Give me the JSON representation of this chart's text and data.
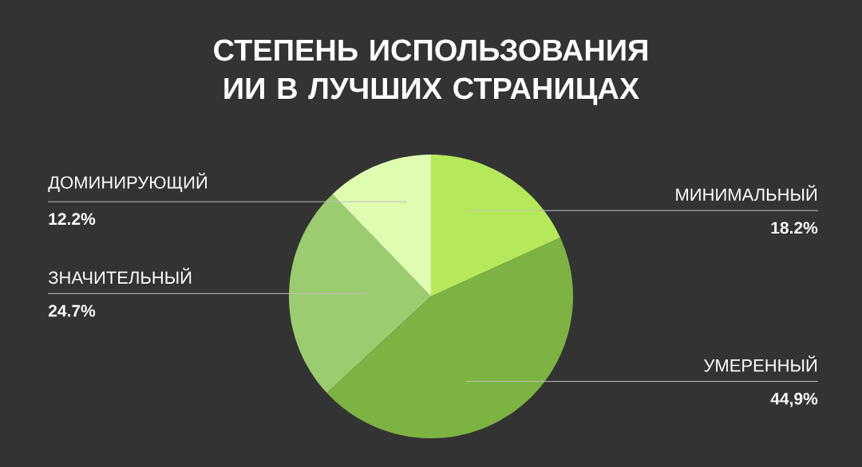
{
  "chart_data": {
    "type": "pie",
    "title": "СТЕПЕНЬ ИСПОЛЬЗОВАНИЯ ИИ В ЛУЧШИХ СТРАНИЦАХ",
    "categories": [
      "МИНИМАЛЬНЫЙ",
      "УМЕРЕННЫЙ",
      "ЗНАЧИТЕЛЬНЫЙ",
      "ДОМИНИРУЮЩИЙ"
    ],
    "values": [
      18.2,
      44.9,
      24.7,
      12.2
    ],
    "value_labels": [
      "18.2%",
      "44,9%",
      "24.7%",
      "12.2%"
    ],
    "colors": [
      "#b5e85a",
      "#7cb342",
      "#9ccc70",
      "#e0fcb0"
    ]
  }
}
